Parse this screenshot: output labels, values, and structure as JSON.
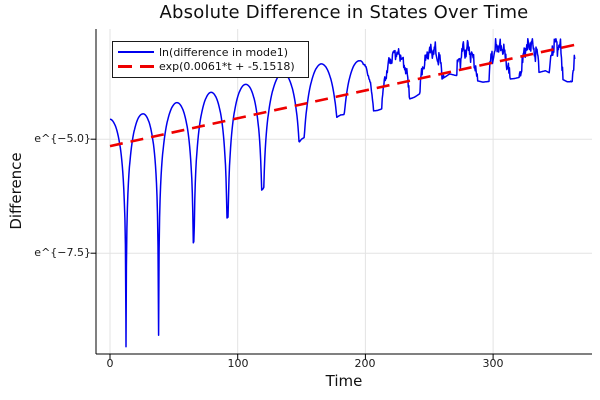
{
  "chart_data": {
    "type": "line",
    "title": "Absolute Difference in States Over Time",
    "xlabel": "Time",
    "ylabel": "Difference",
    "y_scale": "log-e",
    "legend_position": "top-left",
    "grid": true,
    "x_ticks": [
      {
        "t": 0,
        "label": "0"
      },
      {
        "t": 100,
        "label": "100"
      },
      {
        "t": 200,
        "label": "200"
      },
      {
        "t": 300,
        "label": "300"
      }
    ],
    "y_ticks": [
      {
        "ln": -5.0,
        "label": "e^{−5.0}"
      },
      {
        "ln": -7.5,
        "label": "e^{−7.5}"
      }
    ],
    "axes": {
      "x_min": -11,
      "x_max": 377.5,
      "ln_min": -9.71,
      "ln_max": -2.585
    },
    "colors": {
      "background": "#ffffff",
      "grid": "#e3e3e3",
      "axis": "#000000",
      "text": "#1a1a1a",
      "series1": "#0000ee",
      "series2": "#ee0000"
    },
    "series": [
      {
        "name": "ln(difference in mode1)",
        "color": "#0000ee",
        "style": "solid",
        "width": 1.5,
        "t_start": 0,
        "t_end": 364,
        "model": {
          "description": "log of oscillating |difference|: arcs between sharp cusp dips, rising envelope, noisy after t~200",
          "peak_envelope_ln": [
            [
              0,
              -4.56
            ],
            [
              25,
              -4.45
            ],
            [
              52,
              -4.2
            ],
            [
              78,
              -3.98
            ],
            [
              106,
              -3.8
            ],
            [
              135,
              -3.55
            ],
            [
              165,
              -3.35
            ],
            [
              196,
              -3.28
            ],
            [
              224,
              -3.12
            ],
            [
              252,
              -3.06
            ],
            [
              279,
              -3.02
            ],
            [
              306,
              -2.96
            ],
            [
              331,
              -2.92
            ],
            [
              352,
              -2.89
            ],
            [
              365,
              -2.95
            ]
          ],
          "dips": [
            [
              12.5,
              -9.55
            ],
            [
              38,
              -9.3
            ],
            [
              65.5,
              -7.25
            ],
            [
              92,
              -6.72
            ],
            [
              119.5,
              -6.1
            ],
            [
              150,
              -5.0
            ],
            [
              180.5,
              -4.47
            ],
            [
              209.5,
              -4.37
            ],
            [
              238.5,
              -4.08
            ],
            [
              266,
              -3.57
            ],
            [
              292,
              -3.75
            ],
            [
              317,
              -3.67
            ],
            [
              341,
              -3.5
            ],
            [
              358,
              -3.74
            ]
          ],
          "pre_dip": -13.5,
          "post_dip": 382,
          "clamp_top": -2.8,
          "noise_amp": [
            [
              195,
              0
            ],
            [
              215,
              0.12
            ],
            [
              245,
              0.18
            ],
            [
              300,
              0.2
            ],
            [
              365,
              0.24
            ]
          ],
          "noise_components": [
            [
              1.73,
              0.55,
              0.8
            ],
            [
              3.97,
              0.3,
              2.1
            ],
            [
              8.77,
              0.35,
              4.2
            ],
            [
              14.3,
              0.25,
              1.1
            ]
          ],
          "sample_step": 0.4
        }
      },
      {
        "name": "exp(0.0061*t + -5.1518)",
        "color": "#ee0000",
        "style": "dashed",
        "dash": [
          13,
          8
        ],
        "width": 2.6,
        "slope": 0.0061,
        "intercept": -5.1518,
        "t_start": 0,
        "t_end": 368
      }
    ]
  }
}
